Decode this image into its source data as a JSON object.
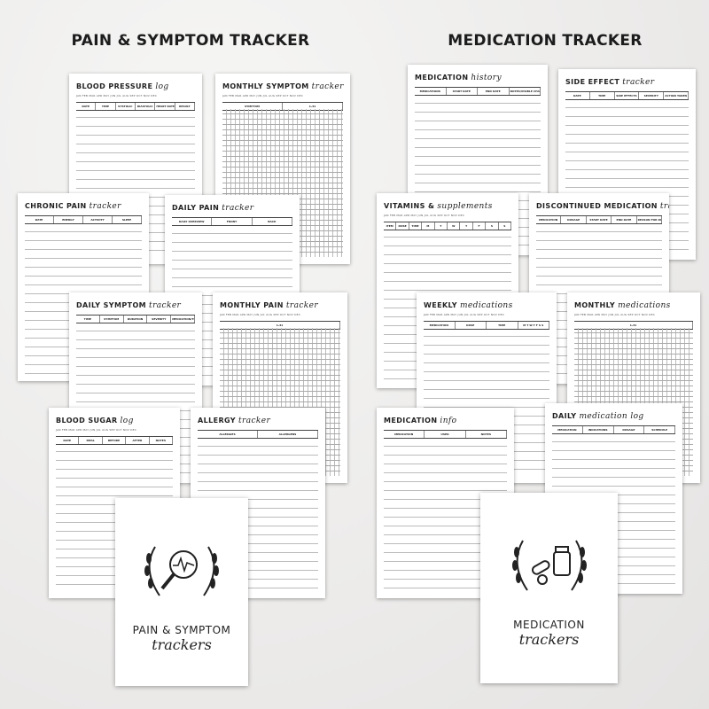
{
  "headings": {
    "left": "PAIN & SYMPTOM TRACKER",
    "right": "MEDICATION TRACKER"
  },
  "months": "JAN FEB MAR APR MAY JUN JUL AUG SEP OCT NOV DEC",
  "pages": [
    {
      "id": "blood-pressure",
      "main": "BLOOD PRESSURE",
      "script": "log",
      "months": true,
      "cols": [
        "DATE",
        "TIME",
        "SYSTOLIC",
        "DIASTOLIC",
        "HEART RATE",
        "RESULT"
      ],
      "grid": false
    },
    {
      "id": "monthly-symptom",
      "main": "MONTHLY SYMPTOM",
      "script": "tracker",
      "months": true,
      "cols": [
        "SYMPTOM",
        "1-31"
      ],
      "grid": true
    },
    {
      "id": "chronic-pain",
      "main": "CHRONIC PAIN",
      "script": "tracker",
      "months": false,
      "cols": [
        "DATE",
        "ENERGY",
        "ACTIVITY",
        "SLEEP"
      ],
      "grid": false
    },
    {
      "id": "daily-pain",
      "main": "DAILY PAIN",
      "script": "tracker",
      "months": false,
      "cols": [
        "DAILY OVERVIEW",
        "FRONT",
        "BACK"
      ],
      "grid": false
    },
    {
      "id": "daily-symptom",
      "main": "DAILY SYMPTOM",
      "script": "tracker",
      "months": false,
      "cols": [
        "TIME",
        "SYMPTOM",
        "DURATION",
        "SEVERITY",
        "MEDICATION/TREATMENT"
      ],
      "grid": false
    },
    {
      "id": "monthly-pain",
      "main": "MONTHLY PAIN",
      "script": "tracker",
      "months": true,
      "cols": [
        "1-31"
      ],
      "grid": true
    },
    {
      "id": "blood-sugar",
      "main": "BLOOD SUGAR",
      "script": "log",
      "months": true,
      "cols": [
        "DATE",
        "MEAL",
        "BEFORE",
        "AFTER",
        "NOTES"
      ],
      "grid": false
    },
    {
      "id": "allergy",
      "main": "ALLERGY",
      "script": "tracker",
      "months": false,
      "cols": [
        "ALLERGIES",
        "ALLERGENS"
      ],
      "grid": false
    },
    {
      "id": "medication-history",
      "main": "MEDICATION",
      "script": "history",
      "months": false,
      "cols": [
        "MEDICATIONS",
        "START DATE",
        "END DATE",
        "NOTES/VISIBLE CHANGES"
      ],
      "grid": false
    },
    {
      "id": "side-effect",
      "main": "SIDE EFFECT",
      "script": "tracker",
      "months": false,
      "cols": [
        "DATE",
        "TIME",
        "SIDE EFFECTS",
        "SEVERITY",
        "ACTION TAKEN"
      ],
      "grid": false
    },
    {
      "id": "vitamins",
      "main": "VITAMINS &",
      "script": "supplements",
      "months": true,
      "cols": [
        "ITEM",
        "DOSE",
        "TIME",
        "M",
        "T",
        "W",
        "T",
        "F",
        "S",
        "S"
      ],
      "grid": false
    },
    {
      "id": "discontinued",
      "main": "DISCONTINUED MEDICATION",
      "script": "tracker",
      "months": false,
      "cols": [
        "MEDICATION",
        "DOSAGE",
        "START DATE",
        "END DATE",
        "REASON FOR DISCONTINUATION"
      ],
      "grid": false
    },
    {
      "id": "weekly-medications",
      "main": "WEEKLY",
      "script": "medications",
      "months": true,
      "cols": [
        "MEDICATION",
        "DOSE",
        "TIME",
        "M T W T F S S"
      ],
      "grid": false
    },
    {
      "id": "monthly-medications",
      "main": "MONTHLY",
      "script": "medications",
      "months": true,
      "cols": [
        "1-31"
      ],
      "grid": true
    },
    {
      "id": "medication-info",
      "main": "MEDICATION",
      "script": "info",
      "months": false,
      "cols": [
        "MEDICATION",
        "USED",
        "NOTES"
      ],
      "grid": false
    },
    {
      "id": "daily-medication-log",
      "main": "DAILY",
      "script": "medication log",
      "months": false,
      "cols": [
        "MEDICATION",
        "INDICATIONS",
        "DOSAGE",
        "SCHEDULE"
      ],
      "grid": false
    }
  ],
  "covers": {
    "pain": {
      "title": "PAIN & SYMPTOM",
      "script": "trackers"
    },
    "medication": {
      "title": "MEDICATION",
      "script": "trackers"
    }
  }
}
